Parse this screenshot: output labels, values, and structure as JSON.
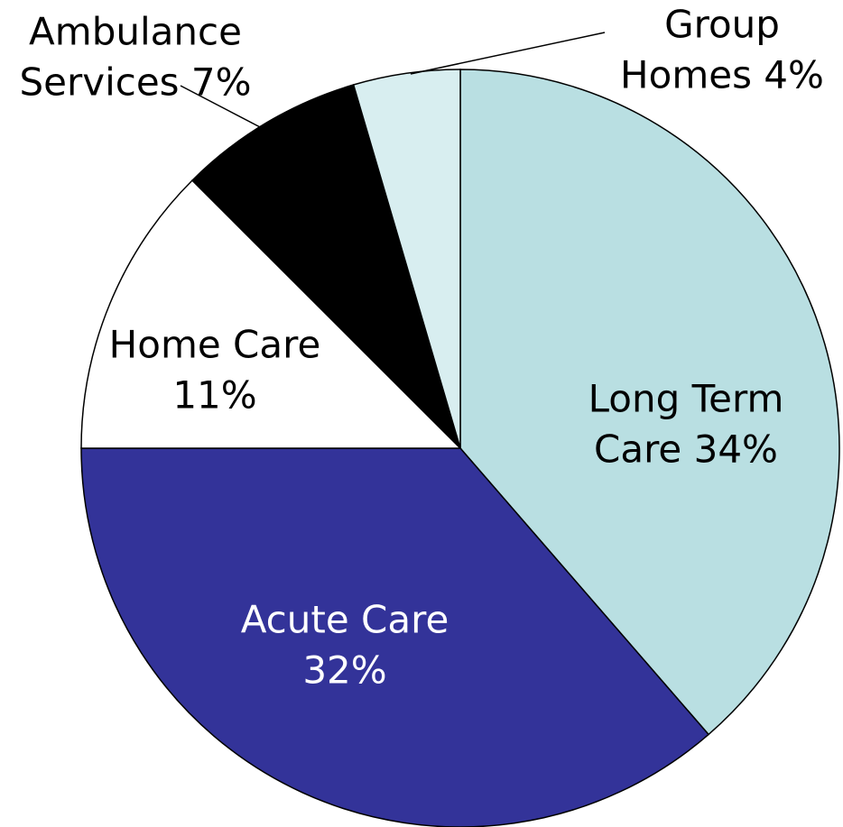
{
  "chart_data": {
    "type": "pie",
    "values": [
      34,
      32,
      11,
      7,
      4
    ],
    "value_labels": [
      [
        "Long Term",
        "Care 34%"
      ],
      [
        "Acute Care",
        "32%"
      ],
      [
        "Home Care",
        "11%"
      ],
      [
        "Ambulance",
        "Services 7%"
      ],
      [
        "Group",
        "Homes 4%"
      ]
    ],
    "colors": [
      "#b9dfe2",
      "#333399",
      "#ffffff",
      "#000000",
      "#d8eef0"
    ]
  }
}
